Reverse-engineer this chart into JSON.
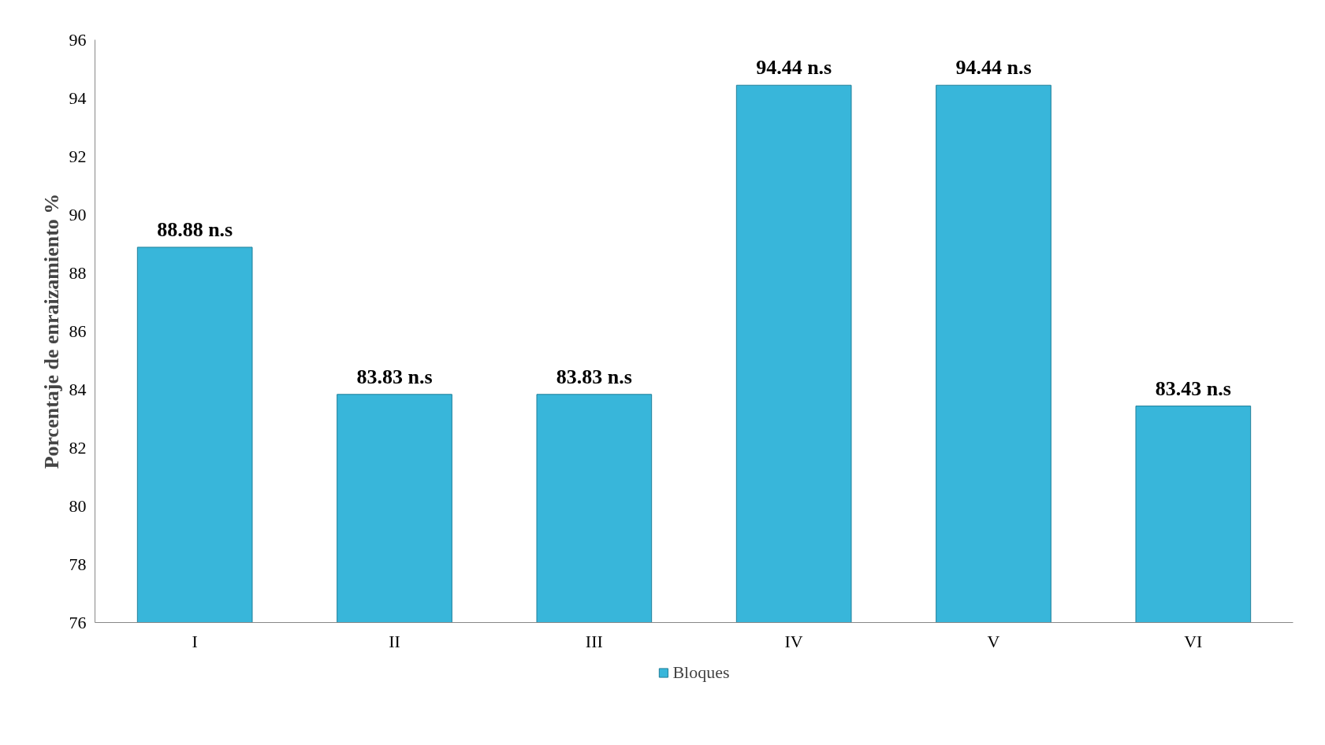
{
  "chart_data": {
    "type": "bar",
    "ylabel": "Porcentaje de enraizamiento %",
    "categories": [
      "I",
      "II",
      "III",
      "IV",
      "V",
      "VI"
    ],
    "series": [
      {
        "name": "Bloques",
        "color": "#38b6da",
        "values": [
          88.88,
          83.83,
          83.83,
          94.44,
          94.44,
          83.43
        ]
      }
    ],
    "value_labels": [
      "88.88 n.s",
      "83.83 n.s",
      "83.83 n.s",
      "94.44 n.s",
      "94.44 n.s",
      "83.43 n.s"
    ],
    "ylim": [
      76,
      96
    ],
    "yticks": [
      76,
      78,
      80,
      82,
      84,
      86,
      88,
      90,
      92,
      94,
      96
    ],
    "grid": false,
    "legend": "bottom"
  }
}
